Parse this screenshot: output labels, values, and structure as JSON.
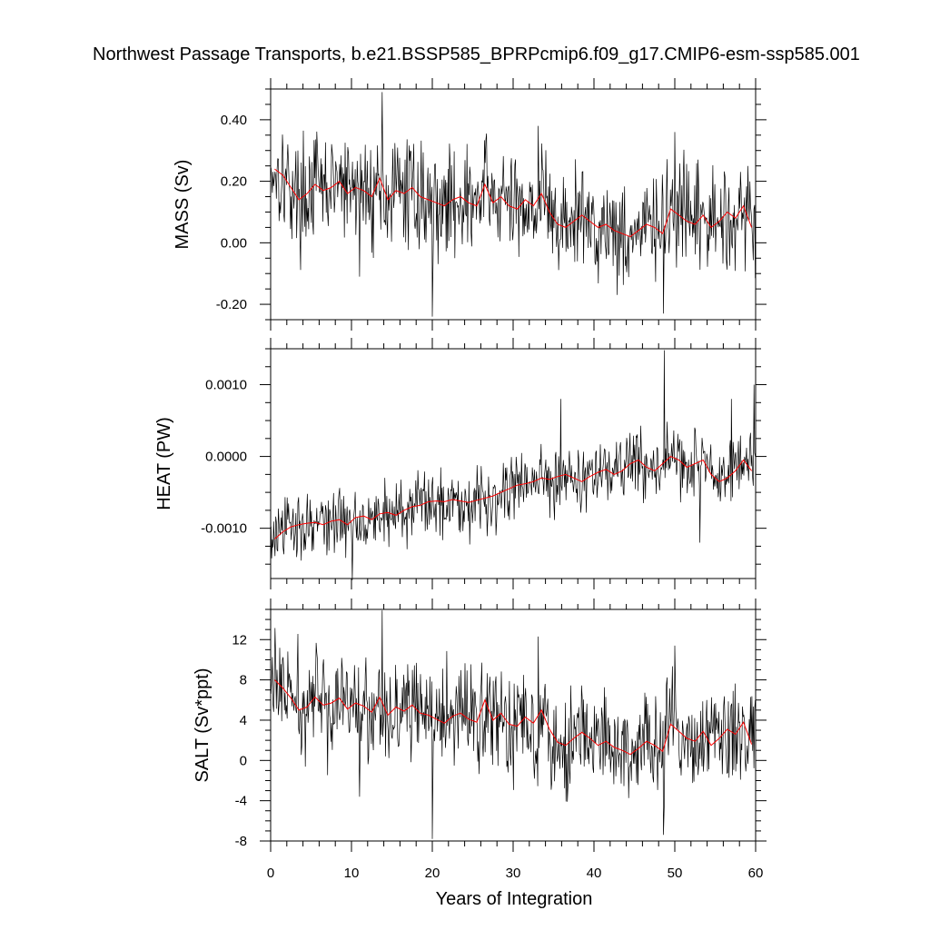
{
  "chart_data": {
    "type": "line",
    "title": "Northwest Passage Transports, b.e21.BSSP585_BPRPcmip6.f09_g17.CMIP6-esm-ssp585.001",
    "xlabel": "Years of Integration",
    "x_range": [
      0,
      60
    ],
    "x_ticks": [
      "0",
      "10",
      "20",
      "30",
      "40",
      "50",
      "60"
    ],
    "line_colors": {
      "monthly": "#000000",
      "annual_mean": "#ff0000"
    },
    "panels": [
      {
        "ylabel": "MASS (Sv)",
        "ylim": [
          -0.25,
          0.5
        ],
        "y_ticks": [
          -0.2,
          0,
          0.2,
          0.4
        ],
        "y_tick_labels": [
          "-0.20",
          "0.00",
          "0.20",
          "0.40"
        ],
        "annual_mean": [
          0.24,
          0.22,
          0.18,
          0.14,
          0.16,
          0.19,
          0.17,
          0.18,
          0.2,
          0.16,
          0.18,
          0.17,
          0.15,
          0.21,
          0.14,
          0.17,
          0.16,
          0.18,
          0.15,
          0.14,
          0.13,
          0.12,
          0.14,
          0.15,
          0.13,
          0.12,
          0.19,
          0.13,
          0.15,
          0.12,
          0.11,
          0.14,
          0.12,
          0.16,
          0.1,
          0.06,
          0.05,
          0.07,
          0.09,
          0.07,
          0.05,
          0.06,
          0.04,
          0.03,
          0.02,
          0.04,
          0.06,
          0.05,
          0.03,
          0.11,
          0.09,
          0.07,
          0.06,
          0.09,
          0.05,
          0.07,
          0.1,
          0.08,
          0.12,
          0.05
        ],
        "monthly_params": {
          "spread": 0.085,
          "outliers": [
            [
              13.8,
              0.49
            ],
            [
              20.0,
              -0.24
            ],
            [
              48.6,
              -0.23
            ],
            [
              33.1,
              0.38
            ],
            [
              50.0,
              0.36
            ],
            [
              11.0,
              -0.11
            ]
          ]
        }
      },
      {
        "ylabel": "HEAT (PW)",
        "ylim": [
          -0.0017,
          0.0015
        ],
        "y_ticks": [
          -0.001,
          0,
          0.001
        ],
        "y_tick_labels": [
          "-0.0010",
          "0.0000",
          "0.0010"
        ],
        "annual_mean": [
          -0.00115,
          -0.00105,
          -0.00098,
          -0.00095,
          -0.00093,
          -0.00092,
          -0.00095,
          -0.0009,
          -0.00088,
          -0.00095,
          -0.00085,
          -0.00083,
          -0.00088,
          -0.0008,
          -0.00078,
          -0.00082,
          -0.00075,
          -0.0007,
          -0.00068,
          -0.00063,
          -0.00062,
          -0.00063,
          -0.0006,
          -0.00062,
          -0.00064,
          -0.00061,
          -0.00058,
          -0.00055,
          -0.0005,
          -0.00045,
          -0.0004,
          -0.00038,
          -0.00035,
          -0.0003,
          -0.00032,
          -0.00028,
          -0.00025,
          -0.0003,
          -0.00035,
          -0.00028,
          -0.00022,
          -0.00018,
          -0.00025,
          -0.0002,
          -0.0001,
          -5e-05,
          -0.00015,
          -0.0002,
          -0.0001,
          0.0,
          -5e-05,
          -0.00015,
          -0.0001,
          -5e-05,
          -0.00025,
          -0.00035,
          -0.0003,
          -0.0002,
          -5e-05,
          -0.0002
        ],
        "monthly_params": {
          "spread": 0.00023,
          "outliers": [
            [
              48.7,
              0.00148
            ],
            [
              10.1,
              -0.00172
            ],
            [
              35.9,
              0.0008
            ],
            [
              53.1,
              -0.0012
            ],
            [
              57.0,
              0.0008
            ],
            [
              59.8,
              0.001
            ]
          ]
        }
      },
      {
        "ylabel": "SALT (Sv*ppt)",
        "ylim": [
          -8,
          15
        ],
        "y_ticks": [
          -8,
          -4,
          0,
          4,
          8,
          12
        ],
        "y_tick_labels": [
          "-8",
          "-4",
          "0",
          "4",
          "8",
          "12"
        ],
        "annual_mean": [
          8.0,
          7.2,
          6.2,
          5.0,
          5.3,
          6.3,
          5.5,
          5.7,
          6.2,
          5.1,
          5.7,
          5.4,
          4.8,
          6.3,
          4.5,
          5.3,
          4.9,
          5.5,
          4.7,
          4.5,
          4.1,
          3.7,
          4.4,
          4.7,
          4.1,
          3.8,
          6.0,
          4.0,
          4.7,
          3.6,
          3.4,
          4.3,
          3.7,
          5.0,
          3.1,
          1.8,
          1.5,
          2.2,
          2.8,
          2.2,
          1.5,
          1.9,
          1.3,
          1.0,
          0.6,
          1.2,
          1.9,
          1.5,
          0.9,
          3.6,
          2.9,
          2.2,
          1.9,
          2.9,
          1.5,
          2.2,
          3.1,
          2.6,
          3.8,
          1.6
        ],
        "monthly_params": {
          "spread": 2.6,
          "outliers": [
            [
              13.8,
              14.9
            ],
            [
              20.0,
              -7.8
            ],
            [
              48.6,
              -7.4
            ],
            [
              50.0,
              11.4
            ],
            [
              33.1,
              12.3
            ],
            [
              11.0,
              -3.6
            ]
          ]
        }
      }
    ]
  }
}
